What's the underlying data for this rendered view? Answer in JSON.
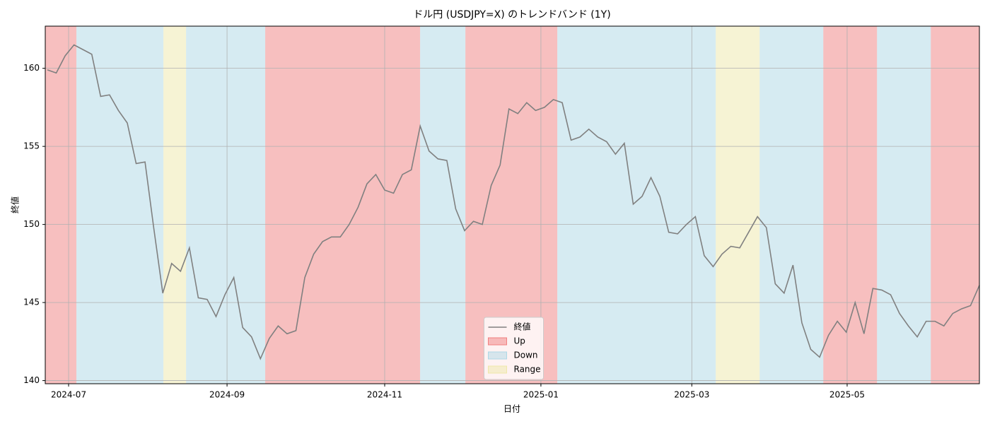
{
  "chart_data": {
    "type": "line",
    "title": "ドル円 (USDJPY=X) のトレンドバンド (1Y)",
    "x_label": "日付",
    "y_label": "終値",
    "series": [
      {
        "name": "終値",
        "color": "#808080",
        "values": [
          159.9,
          159.7,
          160.8,
          161.5,
          161.2,
          160.9,
          158.2,
          158.3,
          157.3,
          156.5,
          153.9,
          154.0,
          149.7,
          145.6,
          147.5,
          147.0,
          148.5,
          145.3,
          145.2,
          144.1,
          145.5,
          146.6,
          143.4,
          142.8,
          141.4,
          142.7,
          143.5,
          143.0,
          143.2,
          146.6,
          148.1,
          148.9,
          149.2,
          149.2,
          150.0,
          151.1,
          152.6,
          153.2,
          152.2,
          152.0,
          153.2,
          153.5,
          156.3,
          154.7,
          154.2,
          154.1,
          151.0,
          149.6,
          150.2,
          150.0,
          152.5,
          153.8,
          157.4,
          157.1,
          157.8,
          157.3,
          157.5,
          158.0,
          157.8,
          155.4,
          155.6,
          156.1,
          155.6,
          155.3,
          154.5,
          155.2,
          151.3,
          151.8,
          153.0,
          151.8,
          149.5,
          149.4,
          150.0,
          150.5,
          148.0,
          147.3,
          148.1,
          148.6,
          148.5,
          149.5,
          150.5,
          149.8,
          146.2,
          145.6,
          147.4,
          143.7,
          142.0,
          141.5,
          142.9,
          143.8,
          143.1,
          145.0,
          143.0,
          145.9,
          145.8,
          145.5,
          144.3,
          143.5,
          142.8,
          143.8,
          143.8,
          143.5,
          144.3,
          144.6,
          144.8,
          146.1
        ]
      }
    ],
    "regimes": [
      {
        "name": "Up",
        "color": "#f08080",
        "spans": [
          [
            -0.24,
            3.27
          ],
          [
            24.54,
            41.99
          ],
          [
            47.09,
            57.45
          ],
          [
            87.41,
            93.47
          ],
          [
            99.52,
            105
          ]
        ]
      },
      {
        "name": "Down",
        "color": "#add8e6",
        "spans": [
          [
            3.27,
            13.07
          ],
          [
            15.62,
            24.54
          ],
          [
            41.99,
            47.09
          ],
          [
            57.45,
            75.3
          ],
          [
            80.24,
            87.41
          ],
          [
            93.47,
            99.52
          ]
        ]
      },
      {
        "name": "Range",
        "color": "#eee8aa",
        "spans": [
          [
            13.07,
            15.62
          ],
          [
            75.3,
            80.24
          ]
        ]
      }
    ],
    "xlim": [
      -0.24,
      105
    ],
    "xticks": [
      {
        "value": 2.39,
        "label": "2024-07"
      },
      {
        "value": 20.24,
        "label": "2024-09"
      },
      {
        "value": 38.0,
        "label": "2024-11"
      },
      {
        "value": 55.6,
        "label": "2025-01"
      },
      {
        "value": 72.6,
        "label": "2025-03"
      },
      {
        "value": 90.1,
        "label": "2025-05"
      }
    ],
    "ylim": [
      139.8,
      162.7
    ],
    "yticks": [
      140,
      145,
      150,
      155,
      160
    ],
    "grid": true,
    "legend": "lower center"
  }
}
